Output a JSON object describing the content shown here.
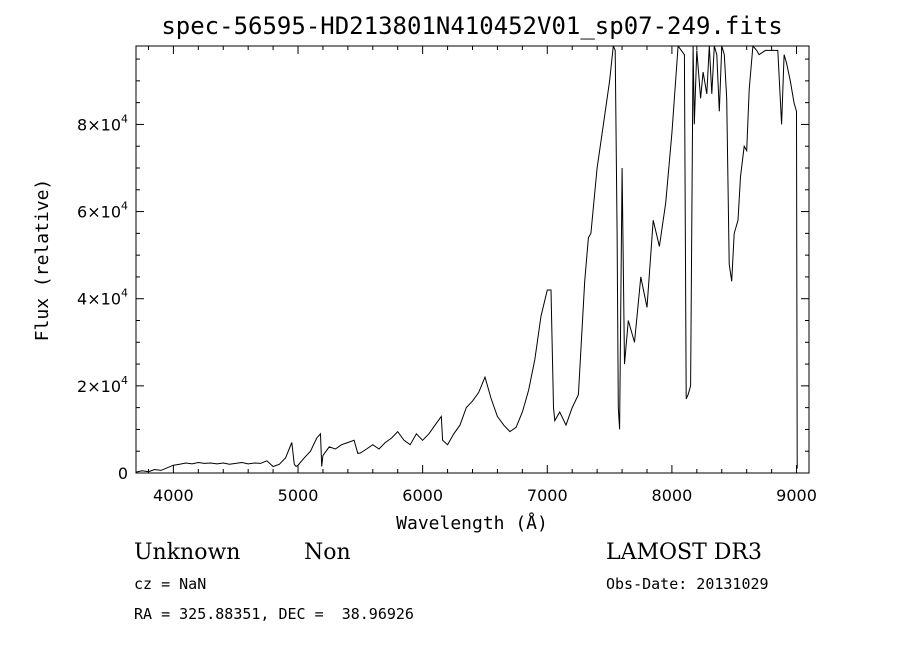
{
  "chart_data": {
    "type": "line",
    "title": "spec-56595-HD213801N410452V01_sp07-249.fits",
    "xlabel": "Wavelength (Å)",
    "ylabel": "Flux (relative)",
    "xlim": [
      3700,
      9100
    ],
    "ylim": [
      0,
      98000
    ],
    "x_ticks": [
      {
        "value": 4000,
        "label": "4000"
      },
      {
        "value": 5000,
        "label": "5000"
      },
      {
        "value": 6000,
        "label": "6000"
      },
      {
        "value": 7000,
        "label": "7000"
      },
      {
        "value": 8000,
        "label": "8000"
      },
      {
        "value": 9000,
        "label": "9000"
      }
    ],
    "y_ticks": [
      {
        "value": 0,
        "mantissa": "0",
        "exponent": ""
      },
      {
        "value": 20000,
        "mantissa": "2×10",
        "exponent": "4"
      },
      {
        "value": 40000,
        "mantissa": "4×10",
        "exponent": "4"
      },
      {
        "value": 60000,
        "mantissa": "6×10",
        "exponent": "4"
      },
      {
        "value": 80000,
        "mantissa": "8×10",
        "exponent": "4"
      }
    ],
    "grid": false,
    "legend": "none",
    "series": [
      {
        "color": "#000000",
        "x": [
          3700,
          3750,
          3800,
          3850,
          3900,
          3950,
          4000,
          4050,
          4100,
          4150,
          4200,
          4250,
          4300,
          4350,
          4400,
          4450,
          4500,
          4550,
          4600,
          4650,
          4700,
          4750,
          4800,
          4850,
          4900,
          4950,
          4970,
          4985,
          5000,
          5050,
          5100,
          5150,
          5180,
          5190,
          5200,
          5250,
          5300,
          5350,
          5400,
          5450,
          5480,
          5500,
          5550,
          5600,
          5650,
          5700,
          5750,
          5800,
          5850,
          5900,
          5950,
          6000,
          6050,
          6100,
          6150,
          6160,
          6200,
          6250,
          6300,
          6350,
          6400,
          6450,
          6500,
          6550,
          6600,
          6650,
          6700,
          6750,
          6800,
          6850,
          6900,
          6950,
          7000,
          7030,
          7050,
          7060,
          7100,
          7150,
          7200,
          7250,
          7300,
          7330,
          7350,
          7400,
          7450,
          7500,
          7530,
          7545,
          7560,
          7570,
          7580,
          7600,
          7620,
          7650,
          7700,
          7750,
          7800,
          7850,
          7900,
          7950,
          8000,
          8050,
          8100,
          8115,
          8130,
          8150,
          8170,
          8180,
          8200,
          8230,
          8250,
          8280,
          8300,
          8320,
          8340,
          8360,
          8380,
          8400,
          8420,
          8440,
          8460,
          8480,
          8500,
          8530,
          8550,
          8580,
          8600,
          8620,
          8650,
          8680,
          8700,
          8750,
          8800,
          8830,
          8850,
          8880,
          8900,
          8920,
          8950,
          8980,
          9000,
          9005
        ],
        "y": [
          200,
          500,
          300,
          800,
          600,
          1200,
          1800,
          2000,
          2300,
          2100,
          2400,
          2200,
          2300,
          2100,
          2300,
          2000,
          2200,
          2400,
          2100,
          2300,
          2200,
          2800,
          1500,
          2000,
          3500,
          7000,
          2000,
          1500,
          1800,
          3500,
          5000,
          8000,
          9000,
          1500,
          4000,
          6000,
          5500,
          6500,
          7000,
          7500,
          4500,
          4600,
          5500,
          6500,
          5500,
          7000,
          8000,
          9500,
          7500,
          6500,
          9000,
          7500,
          9000,
          11000,
          13000,
          7500,
          6500,
          9000,
          11000,
          15000,
          16500,
          18500,
          22000,
          17000,
          13000,
          11000,
          9500,
          10500,
          14000,
          19000,
          26000,
          36000,
          42000,
          42000,
          15000,
          12000,
          14000,
          11000,
          15000,
          18000,
          44000,
          54000,
          55000,
          70000,
          80000,
          90000,
          98000,
          97000,
          55000,
          15000,
          10000,
          70000,
          25000,
          35000,
          30000,
          45000,
          38000,
          58000,
          52000,
          62000,
          78000,
          98000,
          96000,
          17000,
          18000,
          20000,
          98000,
          80000,
          97000,
          86000,
          92000,
          87000,
          98000,
          87000,
          98000,
          96000,
          83000,
          98000,
          96000,
          86000,
          48000,
          44000,
          55000,
          58000,
          68000,
          75000,
          74000,
          88000,
          98000,
          97000,
          96000,
          97000,
          97000,
          97000,
          97000,
          80000,
          96000,
          94000,
          90000,
          85000,
          83000,
          1000
        ]
      }
    ]
  },
  "info": {
    "object_class": "Unknown",
    "object_subclass": "Non",
    "survey": "LAMOST DR3",
    "cz": "cz = NaN",
    "obs_date": "Obs-Date: 20131029",
    "coords": "RA = 325.88351, DEC =  38.96926"
  }
}
